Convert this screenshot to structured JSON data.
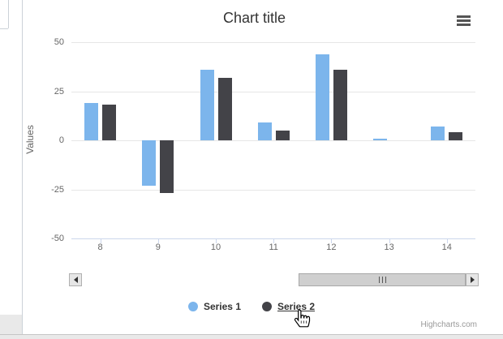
{
  "chart": {
    "title": "Chart title",
    "y_axis_title": "Values",
    "credits": "Highcharts.com"
  },
  "chart_data": {
    "type": "bar",
    "title": "Chart title",
    "xlabel": "",
    "ylabel": "Values",
    "categories": [
      "8",
      "9",
      "10",
      "11",
      "12",
      "13",
      "14"
    ],
    "series": [
      {
        "name": "Series 1",
        "color": "#7cb5ec",
        "values": [
          19,
          -23,
          36,
          9,
          44,
          1,
          7
        ]
      },
      {
        "name": "Series 2",
        "color": "#434348",
        "values": [
          18,
          -27,
          32,
          5,
          36,
          0,
          4
        ]
      }
    ],
    "yticks": [
      50,
      25,
      0,
      -25,
      -50
    ],
    "ylim": [
      -50,
      50
    ],
    "grid": true,
    "legend_position": "bottom-center",
    "scrollbar": true
  },
  "legend": {
    "items": [
      {
        "label": "Series 1",
        "color": "#7cb5ec",
        "hovered": false
      },
      {
        "label": "Series 2",
        "color": "#434348",
        "hovered": true
      }
    ]
  },
  "menu": {
    "icon": "hamburger-icon"
  },
  "scrollbar": {
    "left_icon": "left-arrow-icon",
    "right_icon": "right-arrow-icon",
    "grip": "III"
  },
  "cursor": {
    "icon": "hand-pointer-cursor"
  },
  "colors": {
    "series1": "#7cb5ec",
    "series2": "#434348",
    "gridline": "#e6e6e6",
    "axis_line": "#ccd6eb",
    "axis_label": "#666666",
    "title_text": "#333333",
    "legend_text": "#333333",
    "credits_text": "#999999",
    "scrollbar_thumb": "#cfcfcf",
    "scrollbar_button": "#e6e6e6"
  }
}
